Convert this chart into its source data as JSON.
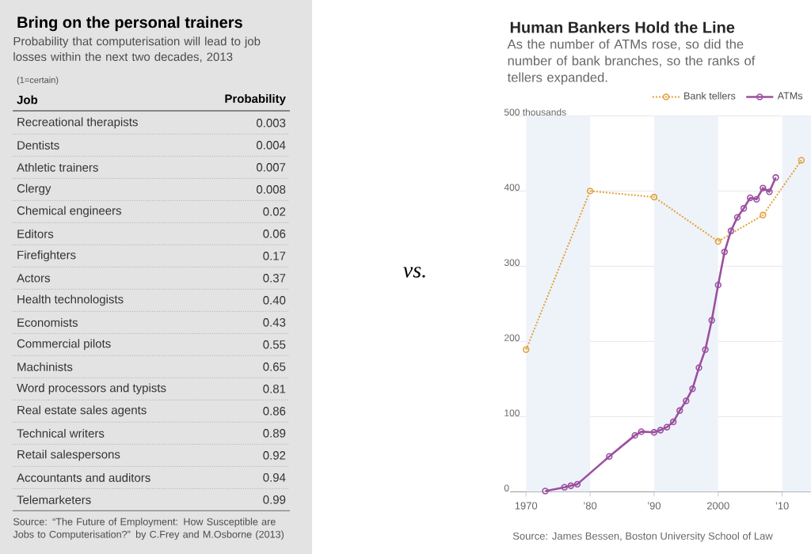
{
  "chart_data": [
    {
      "type": "other",
      "title": "Bring on the personal trainers",
      "subtitle": "Probability that computerisation will lead to job losses within the next two decades, 2013",
      "xlabel": "Job",
      "ylabel": "Probability",
      "annotations": [
        "(1=certain)",
        "Source: “The Future of Employment: How Susceptible are Jobs to Computerisation?” by C.Frey and M.Osborne (2013)",
        "vs."
      ],
      "categories": [
        "Recreational therapists",
        "Dentists",
        "Athletic trainers",
        "Clergy",
        "Chemical engineers",
        "Editors",
        "Firefighters",
        "Actors",
        "Health technologists",
        "Economists",
        "Commercial pilots",
        "Machinists",
        "Word processors and typists",
        "Real estate sales agents",
        "Technical writers",
        "Retail salespersons",
        "Accountants and auditors",
        "Telemarketers"
      ],
      "value_labels": [
        "0.003",
        "0.004",
        "0.007",
        "0.008",
        "0.02",
        "0.06",
        "0.17",
        "0.37",
        "0.40",
        "0.43",
        "0.55",
        "0.65",
        "0.81",
        "0.86",
        "0.89",
        "0.92",
        "0.94",
        "0.99"
      ]
    },
    {
      "type": "line",
      "title": "Human Bankers Hold the Line",
      "subtitle": "As the number of ATMs rose, so did the number of bank branches, so the ranks of tellers expanded.",
      "annotations": [
        "Source: James Bessen, Boston University School of Law"
      ],
      "xlim": [
        1967.5,
        2014.5
      ],
      "xticks": [
        1970,
        {
          "value": 1980,
          "label": "’80"
        },
        {
          "value": 1990,
          "label": "’90"
        },
        2000,
        {
          "value": 2010,
          "label": "’10"
        }
      ],
      "ylim": [
        0,
        500
      ],
      "yticks": [
        0,
        100,
        200,
        300,
        400,
        {
          "value": 500,
          "label": "500 thousands"
        }
      ],
      "grid": "y",
      "legend": "top right",
      "marker": "circle",
      "bands": [
        {
          "axis": "x",
          "from": 1970,
          "to": 1980,
          "color": "#eef3fa"
        },
        {
          "axis": "x",
          "from": 1990,
          "to": 2000,
          "color": "#eef3fa"
        },
        {
          "axis": "x",
          "from": 2010,
          "to": 2014.5,
          "color": "#eef3fa"
        }
      ],
      "series": [
        {
          "name": "Bank tellers",
          "color": "#e2a03a",
          "line_style": "dotted",
          "x": [
            1970,
            1980,
            1990,
            2000,
            2007,
            2013
          ],
          "values": [
            189,
            400,
            392,
            333,
            368,
            441
          ]
        },
        {
          "name": "ATMs",
          "color": "#9b4f9f",
          "line_style": "solid",
          "x": [
            1973,
            1976,
            1977,
            1978,
            1983,
            1987,
            1988,
            1990,
            1991,
            1992,
            1993,
            1994,
            1995,
            1996,
            1997,
            1998,
            1999,
            2000,
            2001,
            2002,
            2003,
            2004,
            2005,
            2006,
            2007,
            2008,
            2009
          ],
          "values": [
            1,
            6,
            8,
            10,
            47,
            75,
            80,
            79,
            82,
            86,
            93,
            108,
            121,
            137,
            165,
            189,
            228,
            275,
            319,
            347,
            365,
            377,
            391,
            389,
            404,
            399,
            418
          ]
        }
      ]
    }
  ]
}
